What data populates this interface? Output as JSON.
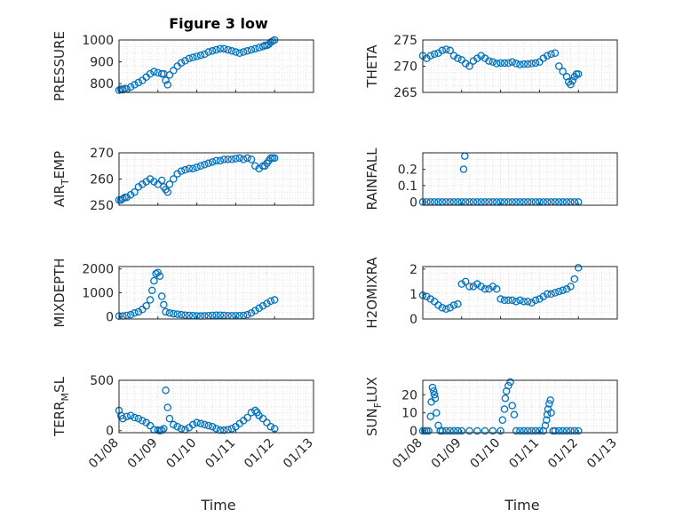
{
  "figure_title": "Figure 3 low",
  "chart_data": [
    {
      "type": "scatter",
      "ylabel": "PRESSURE",
      "ylim": [
        760,
        1000
      ],
      "yticks": [
        "800",
        "900",
        "1000"
      ],
      "xticks": [
        "01/08",
        "01/09",
        "01/10",
        "01/11",
        "01/12",
        "01/13"
      ],
      "grid": true,
      "series": [
        {
          "x": [
            0.0,
            0.05,
            0.1,
            0.15,
            0.2,
            0.3,
            0.4,
            0.5,
            0.6,
            0.7,
            0.8,
            0.9,
            1.0,
            1.1,
            1.15,
            1.2,
            1.25,
            1.3,
            1.4,
            1.5,
            1.6,
            1.7,
            1.8,
            1.9,
            2.0,
            2.1,
            2.2,
            2.3,
            2.4,
            2.5,
            2.6,
            2.7,
            2.8,
            2.9,
            3.0,
            3.1,
            3.2,
            3.3,
            3.4,
            3.5,
            3.6,
            3.7,
            3.75,
            3.8,
            3.85,
            3.9,
            3.95,
            4.0
          ],
          "y": [
            770,
            775,
            772,
            778,
            775,
            785,
            795,
            805,
            815,
            830,
            845,
            855,
            850,
            845,
            845,
            815,
            795,
            840,
            860,
            880,
            895,
            905,
            915,
            920,
            925,
            930,
            935,
            945,
            950,
            955,
            960,
            960,
            955,
            950,
            945,
            940,
            945,
            950,
            955,
            960,
            965,
            970,
            975,
            975,
            980,
            990,
            995,
            1000
          ]
        }
      ]
    },
    {
      "type": "scatter",
      "ylabel": "THETA",
      "ylim": [
        265,
        275
      ],
      "yticks": [
        "265",
        "270",
        "275"
      ],
      "xticks": [
        "01/08",
        "01/09",
        "01/10",
        "01/11",
        "01/12",
        "01/13"
      ],
      "grid": true,
      "series": [
        {
          "x": [
            0.0,
            0.1,
            0.2,
            0.3,
            0.4,
            0.5,
            0.6,
            0.7,
            0.8,
            0.9,
            1.0,
            1.1,
            1.2,
            1.3,
            1.4,
            1.5,
            1.6,
            1.7,
            1.8,
            1.9,
            2.0,
            2.1,
            2.2,
            2.3,
            2.4,
            2.5,
            2.6,
            2.7,
            2.8,
            2.9,
            3.0,
            3.1,
            3.2,
            3.3,
            3.4,
            3.5,
            3.6,
            3.7,
            3.75,
            3.8,
            3.85,
            3.9,
            3.95,
            4.0
          ],
          "y": [
            272,
            271.5,
            272,
            272.3,
            272.5,
            273,
            273.2,
            273,
            272,
            271.5,
            271.2,
            270.5,
            270,
            271,
            271.5,
            272,
            271.5,
            271,
            270.8,
            270.5,
            270.6,
            270.6,
            270.6,
            270.8,
            270.5,
            270.3,
            270.4,
            270.4,
            270.5,
            270.6,
            270.8,
            271.5,
            272,
            272.3,
            272.5,
            270,
            269,
            268,
            267,
            266.5,
            267.2,
            268,
            268.5,
            268.5
          ]
        }
      ]
    },
    {
      "type": "scatter",
      "ylabel": "AIR_TEMP",
      "ylim": [
        250,
        270
      ],
      "yticks": [
        "250",
        "260",
        "270"
      ],
      "xticks": [
        "01/08",
        "01/09",
        "01/10",
        "01/11",
        "01/12",
        "01/13"
      ],
      "grid": true,
      "series": [
        {
          "x": [
            0.0,
            0.05,
            0.1,
            0.15,
            0.2,
            0.3,
            0.4,
            0.5,
            0.6,
            0.7,
            0.8,
            0.9,
            1.0,
            1.1,
            1.15,
            1.2,
            1.25,
            1.3,
            1.4,
            1.5,
            1.6,
            1.7,
            1.8,
            1.9,
            2.0,
            2.1,
            2.2,
            2.3,
            2.4,
            2.5,
            2.6,
            2.7,
            2.8,
            2.9,
            3.0,
            3.1,
            3.2,
            3.3,
            3.4,
            3.5,
            3.6,
            3.7,
            3.75,
            3.8,
            3.85,
            3.9,
            3.95,
            4.0
          ],
          "y": [
            252,
            252,
            252.5,
            253,
            253,
            254,
            255,
            257,
            258,
            259,
            260,
            259,
            258,
            259.5,
            257,
            256,
            255,
            258,
            260,
            262,
            263,
            263.5,
            264,
            264,
            264.5,
            265,
            265.5,
            266,
            266.5,
            267,
            267,
            267.5,
            267.5,
            267.5,
            267.8,
            268,
            267.5,
            268,
            267.5,
            265,
            264,
            265,
            265,
            266,
            267,
            268,
            268,
            268
          ]
        }
      ]
    },
    {
      "type": "scatter",
      "ylabel": "RAINFALL",
      "ylim": [
        -0.02,
        0.3
      ],
      "yticks": [
        "0",
        "0.1",
        "0.2"
      ],
      "xticks": [
        "01/08",
        "01/09",
        "01/10",
        "01/11",
        "01/12",
        "01/13"
      ],
      "grid": true,
      "series": [
        {
          "x": [
            0.0,
            0.1,
            0.2,
            0.3,
            0.4,
            0.5,
            0.6,
            0.7,
            0.8,
            0.9,
            1.0,
            1.05,
            1.08,
            1.1,
            1.2,
            1.3,
            1.4,
            1.5,
            1.6,
            1.7,
            1.8,
            1.9,
            2.0,
            2.1,
            2.2,
            2.3,
            2.4,
            2.5,
            2.6,
            2.7,
            2.8,
            2.9,
            3.0,
            3.1,
            3.2,
            3.3,
            3.4,
            3.5,
            3.6,
            3.7,
            3.8,
            3.9,
            4.0
          ],
          "y": [
            0,
            0,
            0,
            0,
            0,
            0,
            0,
            0,
            0,
            0,
            0,
            0.2,
            0.28,
            0,
            0,
            0,
            0,
            0,
            0,
            0,
            0,
            0,
            0,
            0,
            0,
            0,
            0,
            0,
            0,
            0,
            0,
            0,
            0,
            0,
            0,
            0,
            0,
            0,
            0,
            0,
            0,
            0,
            0
          ]
        }
      ]
    },
    {
      "type": "scatter",
      "ylabel": "MIXDEPTH",
      "ylim": [
        -100,
        2100
      ],
      "yticks": [
        "0",
        "1000",
        "2000"
      ],
      "xticks": [
        "01/08",
        "01/09",
        "01/10",
        "01/11",
        "01/12",
        "01/13"
      ],
      "grid": true,
      "series": [
        {
          "x": [
            0.0,
            0.1,
            0.2,
            0.3,
            0.4,
            0.5,
            0.6,
            0.7,
            0.8,
            0.85,
            0.9,
            0.95,
            1.0,
            1.05,
            1.1,
            1.15,
            1.2,
            1.3,
            1.4,
            1.5,
            1.6,
            1.7,
            1.8,
            1.9,
            2.0,
            2.1,
            2.2,
            2.3,
            2.4,
            2.5,
            2.6,
            2.7,
            2.8,
            2.9,
            3.0,
            3.1,
            3.2,
            3.3,
            3.4,
            3.5,
            3.6,
            3.7,
            3.8,
            3.9,
            4.0
          ],
          "y": [
            20,
            25,
            50,
            80,
            150,
            200,
            300,
            450,
            700,
            1100,
            1500,
            1800,
            1850,
            1700,
            850,
            500,
            200,
            150,
            120,
            100,
            80,
            60,
            50,
            40,
            30,
            25,
            30,
            40,
            50,
            60,
            60,
            50,
            40,
            35,
            35,
            40,
            50,
            80,
            150,
            250,
            350,
            450,
            550,
            650,
            700
          ]
        }
      ]
    },
    {
      "type": "scatter",
      "ylabel": "H2OMIXRA",
      "ylim": [
        0,
        2.1
      ],
      "yticks": [
        "0",
        "1",
        "2"
      ],
      "xticks": [
        "01/08",
        "01/09",
        "01/10",
        "01/11",
        "01/12",
        "01/13"
      ],
      "grid": true,
      "series": [
        {
          "x": [
            0.0,
            0.1,
            0.2,
            0.3,
            0.4,
            0.5,
            0.6,
            0.7,
            0.8,
            0.9,
            1.0,
            1.1,
            1.2,
            1.3,
            1.4,
            1.5,
            1.6,
            1.7,
            1.8,
            1.9,
            2.0,
            2.1,
            2.2,
            2.3,
            2.4,
            2.5,
            2.6,
            2.7,
            2.8,
            2.9,
            3.0,
            3.1,
            3.2,
            3.3,
            3.4,
            3.5,
            3.6,
            3.7,
            3.8,
            3.9,
            4.0
          ],
          "y": [
            0.95,
            0.9,
            0.8,
            0.7,
            0.55,
            0.45,
            0.4,
            0.45,
            0.55,
            0.6,
            1.4,
            1.5,
            1.3,
            1.3,
            1.4,
            1.3,
            1.2,
            1.2,
            1.3,
            1.2,
            0.8,
            0.75,
            0.75,
            0.75,
            0.7,
            0.75,
            0.7,
            0.7,
            0.65,
            0.75,
            0.8,
            0.9,
            1.0,
            1.0,
            1.05,
            1.1,
            1.15,
            1.2,
            1.3,
            1.6,
            2.05
          ]
        }
      ]
    },
    {
      "type": "scatter",
      "ylabel": "TERR_MSL",
      "ylim": [
        -20,
        500
      ],
      "yticks": [
        "0",
        "500"
      ],
      "xticks": [
        "01/08",
        "01/09",
        "01/10",
        "01/11",
        "01/12",
        "01/13"
      ],
      "grid": true,
      "series": [
        {
          "x": [
            0.0,
            0.05,
            0.1,
            0.2,
            0.3,
            0.4,
            0.5,
            0.6,
            0.7,
            0.8,
            0.9,
            1.0,
            1.05,
            1.1,
            1.15,
            1.2,
            1.25,
            1.3,
            1.4,
            1.5,
            1.6,
            1.7,
            1.8,
            1.9,
            2.0,
            2.1,
            2.2,
            2.3,
            2.4,
            2.5,
            2.6,
            2.7,
            2.8,
            2.9,
            3.0,
            3.1,
            3.2,
            3.3,
            3.4,
            3.5,
            3.55,
            3.6,
            3.7,
            3.8,
            3.9,
            4.0
          ],
          "y": [
            200,
            150,
            120,
            140,
            150,
            130,
            120,
            100,
            80,
            50,
            10,
            5,
            0,
            5,
            20,
            400,
            230,
            120,
            60,
            40,
            20,
            10,
            30,
            60,
            80,
            70,
            60,
            50,
            40,
            20,
            5,
            5,
            10,
            20,
            40,
            70,
            100,
            130,
            180,
            200,
            180,
            150,
            120,
            80,
            40,
            20
          ]
        }
      ]
    },
    {
      "type": "scatter",
      "ylabel": "SUN_FLUX",
      "ylim": [
        -1,
        28
      ],
      "yticks": [
        "0",
        "10",
        "20"
      ],
      "xticks": [
        "01/08",
        "01/09",
        "01/10",
        "01/11",
        "01/12",
        "01/13"
      ],
      "grid": true,
      "series": [
        {
          "x": [
            0.0,
            0.05,
            0.1,
            0.15,
            0.2,
            0.22,
            0.25,
            0.28,
            0.3,
            0.32,
            0.35,
            0.4,
            0.45,
            0.5,
            0.6,
            0.7,
            0.8,
            0.9,
            1.0,
            1.2,
            1.4,
            1.6,
            1.8,
            2.0,
            2.05,
            2.1,
            2.12,
            2.15,
            2.2,
            2.25,
            2.3,
            2.35,
            2.4,
            2.5,
            2.6,
            2.7,
            2.8,
            2.9,
            3.0,
            3.1,
            3.15,
            3.18,
            3.2,
            3.22,
            3.25,
            3.28,
            3.3,
            3.35,
            3.4,
            3.5,
            3.6,
            3.7,
            3.8,
            3.9,
            4.0
          ],
          "y": [
            0,
            0,
            0,
            0,
            8,
            16,
            24,
            22,
            20,
            18,
            10,
            3,
            0,
            0,
            0,
            0,
            0,
            0,
            0,
            0,
            0,
            0,
            0,
            0,
            6,
            12,
            18,
            22,
            25,
            27,
            14,
            9,
            0,
            0,
            0,
            0,
            0,
            0,
            0,
            0,
            3,
            6,
            9,
            12,
            15,
            17,
            10,
            0,
            0,
            0,
            0,
            0,
            0,
            0,
            0
          ]
        }
      ]
    }
  ],
  "xlabels": [
    "Time",
    "Time"
  ],
  "ylabel_subscripts": {
    "AIR_TEMP": [
      "AIR",
      "T",
      "EMP"
    ],
    "TERR_MSL": [
      "TERR",
      "M",
      "SL"
    ],
    "SUN_FLUX": [
      "SUN",
      "F",
      "LUX"
    ]
  }
}
